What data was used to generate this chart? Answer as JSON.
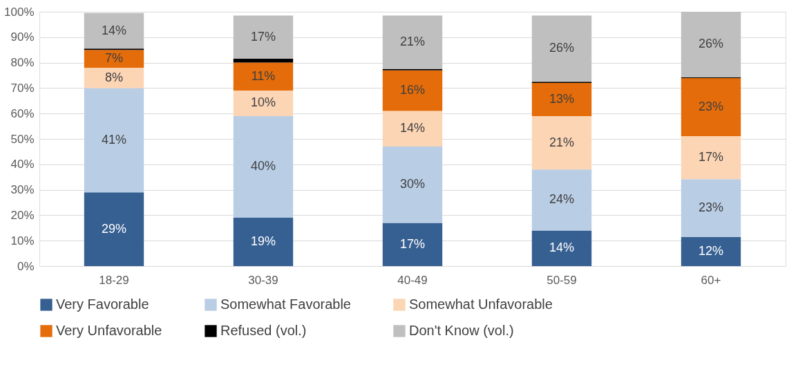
{
  "chart_data": {
    "type": "bar",
    "stacked": true,
    "categories": [
      "18-29",
      "30-39",
      "40-49",
      "50-59",
      "60+"
    ],
    "series": [
      {
        "name": "Very Favorable",
        "color": "#376092",
        "values": [
          29,
          19,
          17,
          14,
          11.5
        ],
        "value_labels": [
          "29%",
          "19%",
          "17%",
          "14%",
          "12%"
        ]
      },
      {
        "name": "Somewhat Favorable",
        "color": "#b9cde5",
        "values": [
          41,
          40,
          30,
          24,
          22.7
        ],
        "value_labels": [
          "41%",
          "40%",
          "30%",
          "24%",
          "23%"
        ]
      },
      {
        "name": "Somewhat Unfavorable",
        "color": "#fcd5b5",
        "values": [
          8,
          10,
          14,
          21,
          16.9
        ],
        "value_labels": [
          "8%",
          "10%",
          "14%",
          "21%",
          "17%"
        ]
      },
      {
        "name": "Very Unfavorable",
        "color": "#e46c0a",
        "values": [
          7,
          11,
          16,
          13,
          22.8
        ],
        "value_labels": [
          "7%",
          "11%",
          "16%",
          "13%",
          "23%"
        ]
      },
      {
        "name": "Refused (vol.)",
        "color": "#000000",
        "values": [
          0.5,
          1.5,
          0.5,
          0.5,
          0.3
        ],
        "value_labels": [
          null,
          null,
          null,
          null,
          null
        ]
      },
      {
        "name": "Don't Know (vol.)",
        "color": "#bfbfbf",
        "values": [
          14,
          17,
          21,
          26,
          25.8
        ],
        "value_labels": [
          "14%",
          "17%",
          "21%",
          "26%",
          "26%"
        ]
      }
    ],
    "ylim": [
      0,
      100
    ],
    "yticks": [
      {
        "value": 0,
        "label": "0%"
      },
      {
        "value": 10,
        "label": "10%"
      },
      {
        "value": 20,
        "label": "20%"
      },
      {
        "value": 30,
        "label": "30%"
      },
      {
        "value": 40,
        "label": "40%"
      },
      {
        "value": 50,
        "label": "50%"
      },
      {
        "value": 60,
        "label": "60%"
      },
      {
        "value": 70,
        "label": "70%"
      },
      {
        "value": 80,
        "label": "80%"
      },
      {
        "value": 90,
        "label": "90%"
      },
      {
        "value": 100,
        "label": "100%"
      }
    ],
    "grid": "y",
    "legend": "bottom"
  }
}
